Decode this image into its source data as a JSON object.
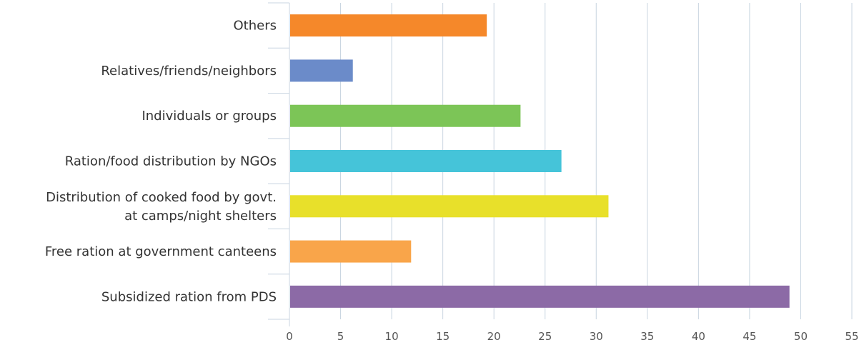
{
  "chart_data": {
    "type": "bar",
    "orientation": "horizontal",
    "categories": [
      [
        "Others"
      ],
      [
        "Relatives/friends/neighbors"
      ],
      [
        "Individuals or groups"
      ],
      [
        "Ration/food distribution by NGOs"
      ],
      [
        "Distribution of cooked food by govt.",
        "at camps/night shelters"
      ],
      [
        "Free ration at government canteens"
      ],
      [
        "Subsidized ration from PDS"
      ]
    ],
    "values": [
      19.3,
      6.2,
      22.6,
      26.6,
      31.2,
      11.9,
      48.9
    ],
    "colors": [
      "#f5882a",
      "#6b8bc9",
      "#7cc557",
      "#45c4d9",
      "#e8e02a",
      "#f9a54a",
      "#8c6aa6"
    ],
    "xlim": [
      0,
      55
    ],
    "xticks": [
      0,
      5,
      10,
      15,
      20,
      25,
      30,
      35,
      40,
      45,
      50,
      55
    ],
    "grid": true,
    "legend": "none",
    "title": "",
    "xlabel": "",
    "ylabel": ""
  }
}
